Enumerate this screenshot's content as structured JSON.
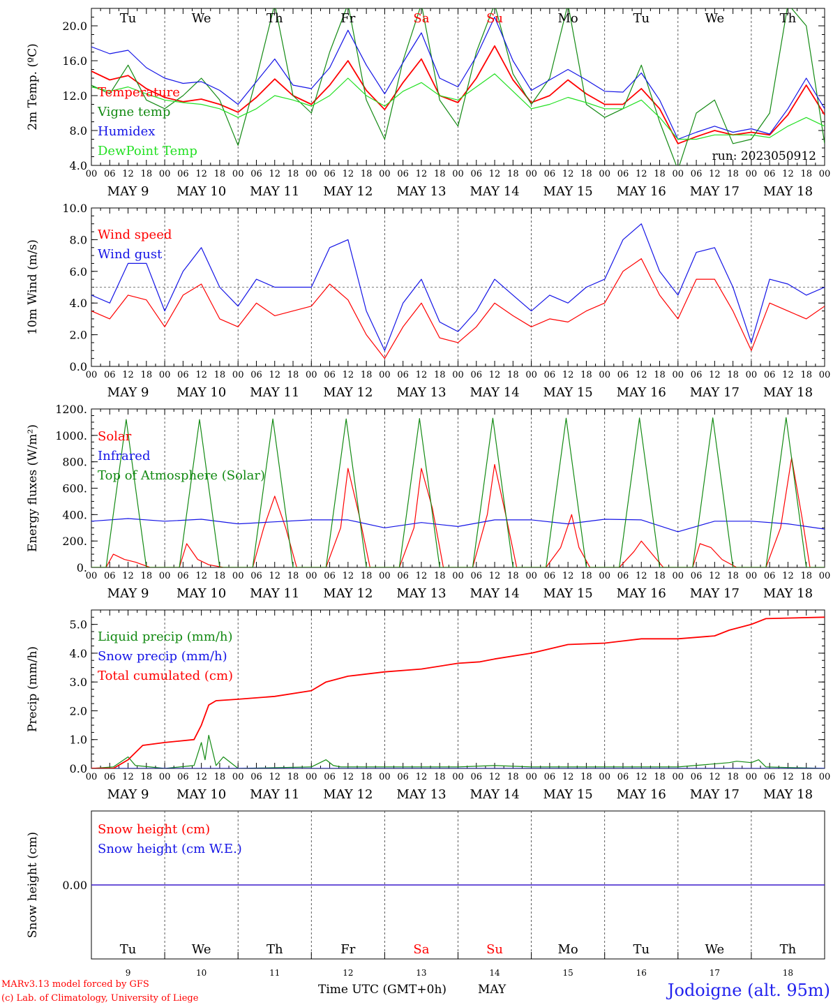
{
  "footer": {
    "credit_line1": "MARv3.13 model forced by GFS",
    "credit_line2": "(c) Lab. of Climatology, University of Liege",
    "axis_title": "Time UTC (GMT+0h)",
    "month_label": "MAY",
    "station": "Jodoigne (alt. 95m)"
  },
  "colors": {
    "red": "#ff0000",
    "green": "#138a13",
    "blue": "#1414e6",
    "lightgreen": "#22e022",
    "weekend": "#ff0000",
    "station": "#2222ee"
  },
  "shared": {
    "weekdays": [
      "Tu",
      "We",
      "Th",
      "Fr",
      "Sa",
      "Su",
      "Mo",
      "Tu",
      "We",
      "Th"
    ],
    "weekend_flags": [
      false,
      false,
      false,
      false,
      true,
      true,
      false,
      false,
      false,
      false
    ],
    "hour_ticks": [
      "00",
      "06",
      "12",
      "18"
    ],
    "end_tick": "00",
    "date_labels": [
      "MAY 9",
      "MAY 10",
      "MAY 11",
      "MAY 12",
      "MAY 13",
      "MAY 14",
      "MAY 15",
      "MAY 16",
      "MAY 17",
      "MAY 18"
    ],
    "day_numbers": [
      "9",
      "10",
      "11",
      "12",
      "13",
      "14",
      "15",
      "16",
      "17",
      "18"
    ],
    "x_start": "2023-05-09T00:00Z",
    "x_end": "2023-05-19T00:00Z"
  },
  "chart_data": [
    {
      "type": "line",
      "ylabel": "2m Temp. (ºC)",
      "ylim": [
        4.0,
        22.0
      ],
      "yticks": [
        "4.0",
        "8.0",
        "12.0",
        "16.0",
        "20.0"
      ],
      "ytick_values": [
        4,
        8,
        12,
        16,
        20
      ],
      "run_label": "run: 2023050912",
      "series": [
        {
          "name": "Temperature",
          "color": "red",
          "x": [
            0,
            0.25,
            0.5,
            0.75,
            1,
            1.25,
            1.5,
            1.75,
            2,
            2.25,
            2.5,
            2.75,
            3,
            3.25,
            3.5,
            3.75,
            4,
            4.25,
            4.5,
            4.75,
            5,
            5.25,
            5.5,
            5.75,
            6,
            6.25,
            6.5,
            6.75,
            7,
            7.25,
            7.5,
            7.75,
            8,
            8.25,
            8.5,
            8.75,
            9,
            9.25,
            9.5,
            9.75,
            10
          ],
          "y": [
            14.8,
            13.8,
            14.3,
            12.8,
            11.8,
            11.3,
            11.6,
            11.0,
            10.1,
            11.8,
            13.9,
            12.0,
            11.0,
            13.2,
            16.0,
            12.6,
            10.4,
            13.5,
            16.2,
            12.0,
            11.2,
            14.0,
            17.7,
            13.8,
            11.2,
            12.0,
            13.8,
            12.2,
            11.0,
            11.0,
            12.8,
            10.5,
            6.5,
            7.3,
            8.0,
            7.5,
            7.8,
            7.5,
            9.8,
            13.2,
            9.8
          ]
        },
        {
          "name": "Vigne temp",
          "color": "green",
          "x": [
            0,
            0.25,
            0.5,
            0.75,
            1,
            1.25,
            1.5,
            1.75,
            2,
            2.25,
            2.5,
            2.75,
            3,
            3.25,
            3.5,
            3.75,
            4,
            4.25,
            4.5,
            4.75,
            5,
            5.25,
            5.5,
            5.75,
            6,
            6.25,
            6.5,
            6.75,
            7,
            7.25,
            7.5,
            7.75,
            8,
            8.25,
            8.5,
            8.75,
            9,
            9.25,
            9.5,
            9.75,
            10
          ],
          "y": [
            13.2,
            12.2,
            15.5,
            11.5,
            10.5,
            12.0,
            14.0,
            11.5,
            6.3,
            14.0,
            22.5,
            12.0,
            10.0,
            17.0,
            22.5,
            11.5,
            7.0,
            16.0,
            22.5,
            11.5,
            8.5,
            17.0,
            22.5,
            14.5,
            11.0,
            14.0,
            22.5,
            11.0,
            9.5,
            10.5,
            15.5,
            9.0,
            3.5,
            10.0,
            11.5,
            6.5,
            7.0,
            10.0,
            22.5,
            20.0,
            6.5
          ]
        },
        {
          "name": "Humidex",
          "color": "blue",
          "x": [
            0,
            0.25,
            0.5,
            0.75,
            1,
            1.25,
            1.5,
            1.75,
            2,
            2.25,
            2.5,
            2.75,
            3,
            3.25,
            3.5,
            3.75,
            4,
            4.25,
            4.5,
            4.75,
            5,
            5.25,
            5.5,
            5.75,
            6,
            6.25,
            6.5,
            6.75,
            7,
            7.25,
            7.5,
            7.75,
            8,
            8.25,
            8.5,
            8.75,
            9,
            9.25,
            9.5,
            9.75,
            10
          ],
          "y": [
            17.6,
            16.8,
            17.2,
            15.2,
            14.0,
            13.4,
            13.6,
            12.6,
            11.0,
            13.6,
            16.2,
            13.2,
            12.8,
            15.2,
            19.5,
            15.5,
            12.2,
            15.8,
            19.2,
            14.0,
            13.0,
            16.5,
            21.0,
            16.0,
            12.6,
            13.8,
            15.0,
            13.8,
            12.5,
            12.4,
            14.6,
            11.5,
            7.0,
            7.8,
            8.5,
            7.8,
            8.2,
            7.6,
            10.5,
            14.0,
            10.5
          ]
        },
        {
          "name": "DewPoint Temp",
          "color": "lightgreen",
          "x": [
            0,
            0.25,
            0.5,
            0.75,
            1,
            1.25,
            1.5,
            1.75,
            2,
            2.25,
            2.5,
            2.75,
            3,
            3.25,
            3.5,
            3.75,
            4,
            4.25,
            4.5,
            4.75,
            5,
            5.25,
            5.5,
            5.75,
            6,
            6.25,
            6.5,
            6.75,
            7,
            7.25,
            7.5,
            7.75,
            8,
            8.25,
            8.5,
            8.75,
            9,
            9.25,
            9.5,
            9.75,
            10
          ],
          "y": [
            13.0,
            12.5,
            13.0,
            12.2,
            11.5,
            11.2,
            11.0,
            10.5,
            9.5,
            10.5,
            12.0,
            11.5,
            10.8,
            12.0,
            14.0,
            12.0,
            10.8,
            12.5,
            13.5,
            12.0,
            11.5,
            13.0,
            14.5,
            12.5,
            10.5,
            11.0,
            11.8,
            11.2,
            10.5,
            10.5,
            11.5,
            9.5,
            7.0,
            7.0,
            7.5,
            7.5,
            7.5,
            7.2,
            8.5,
            9.5,
            8.5
          ]
        }
      ]
    },
    {
      "type": "line",
      "ylabel": "10m Wind (m/s)",
      "ylim": [
        0.0,
        10.0
      ],
      "yticks": [
        "0.0",
        "2.0",
        "4.0",
        "6.0",
        "8.0",
        "10.0"
      ],
      "ytick_values": [
        0,
        2,
        4,
        6,
        8,
        10
      ],
      "reference_line": 5.0,
      "series": [
        {
          "name": "Wind speed",
          "color": "red",
          "x": [
            0,
            0.25,
            0.5,
            0.75,
            1,
            1.25,
            1.5,
            1.75,
            2,
            2.25,
            2.5,
            2.75,
            3,
            3.25,
            3.5,
            3.75,
            4,
            4.25,
            4.5,
            4.75,
            5,
            5.25,
            5.5,
            5.75,
            6,
            6.25,
            6.5,
            6.75,
            7,
            7.25,
            7.5,
            7.75,
            8,
            8.25,
            8.5,
            8.75,
            9,
            9.25,
            9.5,
            9.75,
            10
          ],
          "y": [
            3.5,
            3.0,
            4.5,
            4.2,
            2.5,
            4.5,
            5.2,
            3.0,
            2.5,
            4.0,
            3.2,
            3.5,
            3.8,
            5.2,
            4.2,
            2.0,
            0.5,
            2.5,
            4.0,
            1.8,
            1.5,
            2.5,
            4.0,
            3.2,
            2.5,
            3.0,
            2.8,
            3.5,
            4.0,
            6.0,
            6.8,
            4.5,
            3.0,
            5.5,
            5.5,
            3.5,
            1.0,
            4.0,
            3.5,
            3.0,
            3.8
          ]
        },
        {
          "name": "Wind gust",
          "color": "blue",
          "x": [
            0,
            0.25,
            0.5,
            0.75,
            1,
            1.25,
            1.5,
            1.75,
            2,
            2.25,
            2.5,
            2.75,
            3,
            3.25,
            3.5,
            3.75,
            4,
            4.25,
            4.5,
            4.75,
            5,
            5.25,
            5.5,
            5.75,
            6,
            6.25,
            6.5,
            6.75,
            7,
            7.25,
            7.5,
            7.75,
            8,
            8.25,
            8.5,
            8.75,
            9,
            9.25,
            9.5,
            9.75,
            10
          ],
          "y": [
            4.5,
            4.0,
            6.5,
            6.5,
            3.5,
            6.0,
            7.5,
            5.0,
            3.8,
            5.5,
            5.0,
            5.0,
            5.0,
            7.5,
            8.0,
            3.5,
            1.0,
            4.0,
            5.5,
            2.8,
            2.2,
            3.5,
            5.5,
            4.5,
            3.5,
            4.5,
            4.0,
            5.0,
            5.5,
            8.0,
            9.0,
            6.0,
            4.5,
            7.2,
            7.5,
            5.0,
            1.5,
            5.5,
            5.2,
            4.5,
            5.0
          ]
        }
      ]
    },
    {
      "type": "line",
      "ylabel": "Energy fluxes (W/m²)",
      "ylim": [
        0,
        1200
      ],
      "yticks": [
        "0.",
        "200.",
        "400.",
        "600.",
        "800.",
        "1000.",
        "1200."
      ],
      "ytick_values": [
        0,
        200,
        400,
        600,
        800,
        1000,
        1200
      ],
      "series": [
        {
          "name": "Solar",
          "color": "red",
          "x": [
            0,
            0.2,
            0.3,
            0.45,
            0.6,
            0.8,
            1.2,
            1.3,
            1.45,
            1.6,
            1.8,
            2.2,
            2.35,
            2.5,
            2.65,
            2.8,
            3.2,
            3.4,
            3.5,
            3.65,
            3.8,
            4.2,
            4.4,
            4.5,
            4.65,
            4.8,
            5.2,
            5.4,
            5.5,
            5.65,
            5.8,
            6.2,
            6.4,
            6.55,
            6.65,
            6.8,
            7.2,
            7.4,
            7.5,
            7.65,
            7.8,
            8.2,
            8.3,
            8.45,
            8.6,
            8.8,
            9.2,
            9.4,
            9.55,
            9.7,
            9.8,
            10
          ],
          "y": [
            0,
            0,
            100,
            60,
            40,
            0,
            0,
            180,
            60,
            20,
            0,
            0,
            300,
            540,
            300,
            0,
            0,
            300,
            750,
            400,
            0,
            0,
            300,
            750,
            450,
            0,
            0,
            400,
            780,
            400,
            0,
            0,
            150,
            400,
            150,
            0,
            0,
            120,
            200,
            100,
            0,
            0,
            180,
            150,
            60,
            0,
            0,
            300,
            830,
            350,
            0,
            0
          ]
        },
        {
          "name": "Infrared",
          "color": "blue",
          "x": [
            0,
            0.5,
            1,
            1.5,
            2,
            2.5,
            3,
            3.5,
            4,
            4.5,
            5,
            5.5,
            6,
            6.5,
            7,
            7.5,
            8,
            8.5,
            9,
            9.5,
            10
          ],
          "y": [
            350,
            370,
            350,
            365,
            330,
            345,
            360,
            360,
            300,
            340,
            310,
            360,
            360,
            330,
            365,
            360,
            270,
            350,
            350,
            330,
            290
          ]
        },
        {
          "name": "Top of Atmosphere (Solar)",
          "color": "green",
          "x": [
            0,
            0.2,
            0.475,
            0.75,
            1,
            1.2,
            1.475,
            1.75,
            2,
            2.2,
            2.475,
            2.75,
            3,
            3.2,
            3.475,
            3.75,
            4,
            4.2,
            4.475,
            4.75,
            5,
            5.2,
            5.475,
            5.75,
            6,
            6.2,
            6.475,
            6.75,
            7,
            7.2,
            7.475,
            7.75,
            8,
            8.2,
            8.475,
            8.75,
            9,
            9.2,
            9.475,
            9.75,
            10
          ],
          "y": [
            0,
            0,
            1120,
            0,
            0,
            0,
            1120,
            0,
            0,
            0,
            1125,
            0,
            0,
            0,
            1125,
            0,
            0,
            0,
            1128,
            0,
            0,
            0,
            1130,
            0,
            0,
            0,
            1130,
            0,
            0,
            0,
            1132,
            0,
            0,
            0,
            1133,
            0,
            0,
            0,
            1135,
            0,
            0
          ]
        }
      ]
    },
    {
      "type": "line",
      "ylabel": "Precip (mm/h)",
      "ylim": [
        0.0,
        5.5
      ],
      "yticks": [
        "0.0",
        "1.0",
        "2.0",
        "3.0",
        "4.0",
        "5.0"
      ],
      "ytick_values": [
        0,
        1,
        2,
        3,
        4,
        5
      ],
      "series": [
        {
          "name": "Liquid precip (mm/h)",
          "color": "green",
          "x": [
            0,
            0.3,
            0.5,
            0.6,
            0.8,
            1.0,
            1.4,
            1.5,
            1.55,
            1.6,
            1.7,
            1.8,
            2.0,
            3.0,
            3.2,
            3.3,
            3.4,
            4.0,
            5.0,
            5.5,
            6.0,
            7.0,
            8.0,
            8.7,
            8.8,
            9.0,
            9.1,
            9.2,
            10
          ],
          "y": [
            0,
            0.05,
            0.4,
            0.1,
            0.05,
            0,
            0.1,
            0.9,
            0.3,
            1.15,
            0.1,
            0.4,
            0,
            0.05,
            0.3,
            0.1,
            0.05,
            0.05,
            0.05,
            0.1,
            0.05,
            0.05,
            0.05,
            0.2,
            0.25,
            0.2,
            0.3,
            0.05,
            0
          ]
        },
        {
          "name": "Snow precip (mm/h)",
          "color": "blue",
          "x": [
            0,
            10
          ],
          "y": [
            0,
            0
          ]
        },
        {
          "name": "Total cumulated (cm)",
          "color": "red",
          "x": [
            0,
            0.3,
            0.5,
            0.7,
            1.0,
            1.4,
            1.5,
            1.6,
            1.7,
            2.0,
            2.5,
            3.0,
            3.2,
            3.5,
            4.0,
            4.5,
            5.0,
            5.3,
            5.5,
            6.0,
            6.5,
            7.0,
            7.5,
            8.0,
            8.5,
            8.7,
            9.0,
            9.2,
            10
          ],
          "y": [
            0,
            0,
            0.3,
            0.8,
            0.9,
            1.0,
            1.5,
            2.2,
            2.35,
            2.4,
            2.5,
            2.7,
            3.0,
            3.2,
            3.35,
            3.45,
            3.65,
            3.7,
            3.8,
            4.0,
            4.3,
            4.35,
            4.5,
            4.5,
            4.6,
            4.8,
            5.0,
            5.2,
            5.25
          ]
        }
      ]
    },
    {
      "type": "line",
      "ylabel": "Snow height (cm)",
      "ylim": [
        -1.0,
        1.0
      ],
      "yticks": [
        "0.00"
      ],
      "ytick_values": [
        0
      ],
      "series": [
        {
          "name": "Snow height (cm)",
          "color": "red",
          "x": [
            0,
            10
          ],
          "y": [
            0,
            0
          ]
        },
        {
          "name": "Snow height (cm W.E.)",
          "color": "blue",
          "x": [
            0,
            10
          ],
          "y": [
            0,
            0
          ]
        }
      ]
    }
  ]
}
